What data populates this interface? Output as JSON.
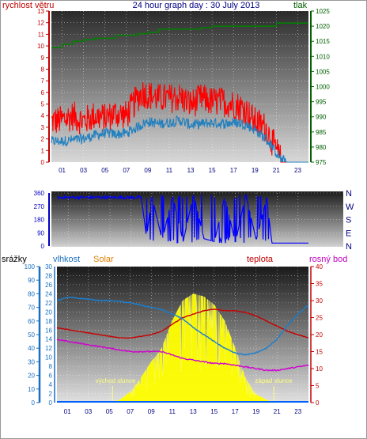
{
  "header": {
    "title": "24 hour graph day : 30 July 2013",
    "wind_label": "rychlost větru",
    "pressure_label": "tlak"
  },
  "colors": {
    "wind_gust": "#ff0000",
    "wind_avg": "#2080c0",
    "pressure": "#008000",
    "direction": "#0000ff",
    "humidity": "#1a7fd0",
    "temperature": "#c80000",
    "dewpoint": "#d000d0",
    "solar": "#ffff00",
    "rain": "#0060ff"
  },
  "chart_data": [
    {
      "type": "line",
      "title": "24 hour graph day : 30 July 2013",
      "x_ticks": [
        "01",
        "03",
        "05",
        "07",
        "09",
        "11",
        "13",
        "15",
        "17",
        "19",
        "21",
        "23"
      ],
      "xlim": [
        0,
        24
      ],
      "left_axis": {
        "label": "rychlost větru",
        "ylim": [
          0,
          13
        ],
        "ticks": [
          0,
          1,
          2,
          3,
          4,
          5,
          6,
          7,
          8,
          9,
          10,
          11,
          12,
          13
        ]
      },
      "right_axis": {
        "label": "tlak",
        "ylim": [
          975,
          1025
        ],
        "ticks": [
          975,
          980,
          985,
          990,
          995,
          1000,
          1005,
          1010,
          1015,
          1020,
          1025
        ]
      },
      "series": [
        {
          "name": "gust",
          "axis": "left",
          "x": [
            0,
            1,
            2,
            3,
            4,
            5,
            6,
            7,
            8,
            8.5,
            9,
            10,
            11,
            12,
            13,
            14,
            15,
            16,
            17,
            18,
            19,
            20,
            20.5,
            21,
            21.5,
            22,
            23,
            24
          ],
          "values": [
            3.5,
            3.6,
            4.0,
            3.5,
            4.0,
            3.8,
            4.2,
            4.0,
            5.5,
            6.0,
            5.8,
            5.5,
            5.5,
            5.6,
            5.0,
            5.5,
            5.2,
            5.2,
            5.0,
            4.6,
            3.5,
            3.0,
            2.0,
            1.0,
            0,
            0,
            0,
            0
          ]
        },
        {
          "name": "average",
          "axis": "left",
          "x": [
            0,
            1,
            2,
            3,
            4,
            5,
            6,
            7,
            8,
            9,
            10,
            11,
            12,
            13,
            14,
            15,
            16,
            17,
            18,
            19,
            20,
            20.5,
            21,
            21.5,
            22,
            23,
            24
          ],
          "values": [
            1.8,
            1.8,
            1.9,
            2.0,
            2.3,
            2.5,
            2.4,
            2.5,
            3.0,
            3.5,
            3.3,
            3.4,
            3.6,
            3.2,
            3.3,
            3.4,
            3.3,
            3.4,
            3.3,
            2.8,
            2.0,
            1.5,
            0.8,
            0.2,
            0,
            0,
            0
          ]
        },
        {
          "name": "pressure",
          "axis": "right",
          "x": [
            0,
            1,
            2,
            3,
            4,
            5,
            6,
            7,
            8,
            9,
            10,
            11,
            12,
            13,
            14,
            15,
            16,
            17,
            18,
            19,
            20,
            21,
            22,
            23,
            24
          ],
          "values": [
            1013,
            1014,
            1015,
            1015.5,
            1016,
            1016,
            1017,
            1017,
            1017.5,
            1018,
            1019,
            1019,
            1019,
            1019,
            1019.5,
            1020,
            1020,
            1020,
            1020,
            1020,
            1020,
            1021,
            1021,
            1021,
            1021
          ]
        }
      ]
    },
    {
      "type": "line",
      "title": "",
      "x_ticks": [
        "01",
        "03",
        "05",
        "07",
        "09",
        "11",
        "13",
        "15",
        "17",
        "19",
        "21",
        "23"
      ],
      "xlim": [
        0,
        24
      ],
      "left_axis": {
        "ylim": [
          0,
          360
        ],
        "ticks": [
          0,
          90,
          180,
          270,
          360
        ]
      },
      "right_axis": {
        "ticks": [
          "N",
          "E",
          "S",
          "W",
          "N"
        ]
      },
      "series": [
        {
          "name": "direction",
          "x": [
            0,
            2,
            4,
            6,
            8,
            8.5,
            9,
            10,
            11,
            12,
            13,
            14,
            15,
            16,
            17,
            18,
            19,
            20,
            20.5,
            21,
            22,
            23,
            24
          ],
          "values": [
            320,
            330,
            335,
            330,
            330,
            60,
            340,
            40,
            340,
            30,
            350,
            50,
            30,
            340,
            20,
            350,
            40,
            330,
            20,
            20,
            20,
            20,
            20
          ]
        }
      ]
    },
    {
      "type": "area",
      "title": "",
      "x_ticks": [
        "01",
        "03",
        "05",
        "07",
        "09",
        "11",
        "13",
        "15",
        "17",
        "19",
        "21",
        "23"
      ],
      "xlim": [
        0,
        24
      ],
      "labels": {
        "rain": "srážky",
        "humidity": "vlhkost",
        "solar": "Solar",
        "temperature": "teplota",
        "dewpoint": "rosný bod",
        "sunrise": "východ slunce",
        "sunset": "západ slunce"
      },
      "axes": {
        "rain": {
          "ylim": [
            0,
            100
          ],
          "ticks": [
            0,
            10,
            20,
            30,
            40,
            50,
            60,
            70,
            80,
            90,
            100
          ]
        },
        "humidity": {
          "ylim": [
            0,
            30
          ],
          "ticks": [
            0,
            2,
            4,
            6,
            8,
            10,
            12,
            14,
            16,
            18,
            20,
            22,
            24,
            26,
            28,
            30
          ]
        },
        "temperature": {
          "ylim": [
            0,
            40
          ],
          "ticks": [
            0,
            5,
            10,
            15,
            20,
            25,
            30,
            35,
            40
          ]
        }
      },
      "sunrise_hour": 5.3,
      "sunset_hour": 20.7,
      "series": [
        {
          "name": "humidity",
          "axis": "humidity",
          "x": [
            0,
            1,
            2,
            3,
            4,
            5,
            6,
            7,
            8,
            9,
            10,
            11,
            12,
            13,
            14,
            15,
            16,
            17,
            18,
            19,
            20,
            21,
            22,
            23,
            24
          ],
          "values": [
            22.5,
            23.2,
            23.0,
            22.8,
            22.5,
            22.5,
            22.3,
            22.0,
            21.5,
            21.0,
            20.5,
            19.5,
            18.5,
            16.5,
            15.0,
            13.5,
            12.0,
            11.0,
            10.5,
            11.0,
            12.0,
            14.0,
            17.0,
            19.5,
            21.5
          ]
        },
        {
          "name": "temperature",
          "axis": "temperature",
          "x": [
            0,
            1,
            2,
            3,
            4,
            5,
            6,
            7,
            8,
            9,
            10,
            11,
            12,
            13,
            14,
            15,
            16,
            17,
            18,
            19,
            20,
            21,
            22,
            23,
            24
          ],
          "values": [
            22,
            21.5,
            21,
            20.5,
            20,
            19.5,
            19,
            19,
            19.5,
            20,
            21,
            23,
            25,
            26,
            27,
            27.5,
            27,
            27,
            26.5,
            25.5,
            24,
            22.5,
            21,
            20,
            19
          ]
        },
        {
          "name": "dewpoint",
          "axis": "temperature",
          "x": [
            0,
            1,
            2,
            3,
            4,
            5,
            6,
            7,
            8,
            9,
            10,
            11,
            12,
            13,
            14,
            15,
            16,
            17,
            18,
            19,
            20,
            21,
            22,
            23,
            24
          ],
          "values": [
            18.5,
            18,
            17.5,
            17,
            16.5,
            16,
            15.5,
            15,
            15,
            15,
            15,
            14,
            13,
            12.5,
            12,
            11.5,
            11.5,
            11,
            10.5,
            10,
            9.5,
            9.5,
            10,
            10.5,
            11
          ]
        },
        {
          "name": "solar",
          "axis": "rain",
          "x": [
            5,
            6,
            7,
            8,
            9,
            10,
            11,
            12,
            13,
            14,
            15,
            16,
            17,
            18,
            19,
            20,
            21
          ],
          "values": [
            0,
            2,
            8,
            18,
            30,
            40,
            60,
            75,
            80,
            78,
            72,
            60,
            40,
            18,
            6,
            2,
            0
          ]
        },
        {
          "name": "rain",
          "axis": "rain",
          "x": [
            0,
            24
          ],
          "values": [
            0,
            0
          ]
        }
      ]
    }
  ]
}
